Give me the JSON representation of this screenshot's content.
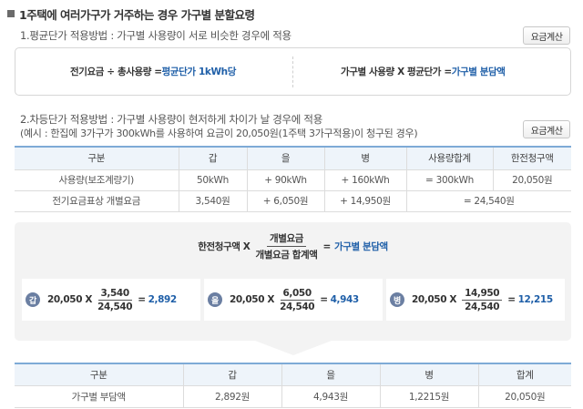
{
  "title": "1주택에 여러가구가 거주하는 경우 가구별 분할요령",
  "section1": {
    "heading": "1.평균단가 적용방법 : 가구별 사용량이 서로 비슷한 경우에 적용",
    "button": "요금계산",
    "formula_left_prefix": "전기요금 ÷ 총사용량 = ",
    "formula_left_result": "평균단가 1kWh당",
    "formula_right_prefix": "가구별 사용량 X 평균단가 = ",
    "formula_right_result": "가구별 분담액"
  },
  "section2": {
    "heading": "2.차등단가 적용방법 : 가구별 사용량이 현저하게 차이가 날 경우에 적용",
    "example": "(예시 : 한집에 3가구가 300kWh를 사용하여 요금이 20,050원(1주택 3가구적용)이 청구된 경우)",
    "button": "요금계산"
  },
  "table1": {
    "headers": [
      "구분",
      "갑",
      "을",
      "병",
      "사용량합계",
      "한전청구액"
    ],
    "row1": [
      "사용량(보조계량기)",
      "50kWh",
      "+ 90kWh",
      "+ 160kWh",
      "= 300kWh",
      "20,050원"
    ],
    "row2": [
      "전기요금표상 개별요금",
      "3,540원",
      "+ 6,050원",
      "+ 14,950원",
      "= 24,540원"
    ]
  },
  "main_formula": {
    "left": "한전청구액 X",
    "numerator": "개별요금",
    "denominator": "개별요금 합계액",
    "eq": "=",
    "result": "가구별 분담액"
  },
  "calcs": [
    {
      "badge": "갑",
      "a": "20,050 X",
      "num": "3,540",
      "den": "24,540",
      "eq": "=",
      "result": "2,892"
    },
    {
      "badge": "을",
      "a": "20,050 X",
      "num": "6,050",
      "den": "24,540",
      "eq": "=",
      "result": "4,943"
    },
    {
      "badge": "병",
      "a": "20,050 X",
      "num": "14,950",
      "den": "24,540",
      "eq": "=",
      "result": "12,215"
    }
  ],
  "table2": {
    "headers": [
      "구분",
      "갑",
      "을",
      "병",
      "합계"
    ],
    "row": [
      "가구별 부담액",
      "2,892원",
      "4,943원",
      "1,2215원",
      "20,050원"
    ]
  },
  "colors": {
    "accent_blue": "#1f5fa8",
    "header_bg": "#eef4fa",
    "badge": "#6b7fa2"
  }
}
